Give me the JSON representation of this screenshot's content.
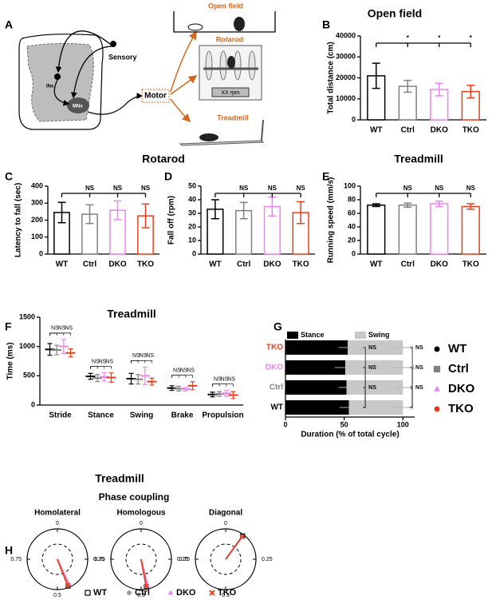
{
  "panel_a": {
    "letter": "A",
    "sensory": "Sensory",
    "ins": "INs",
    "mns": "MNs",
    "motor": "Motor",
    "open_field": "Open field",
    "rotarod": "Rotarod",
    "rpm": "XX rpm",
    "treadmill": "Treadmill"
  },
  "group_titles": {
    "rotarod": "Rotarod"
  },
  "chart_data": [
    {
      "type": "bar",
      "panel": "B",
      "title": "Open field",
      "ylabel": "Total distance (cm)",
      "categories": [
        "WT",
        "Ctrl",
        "DKO",
        "TKO"
      ],
      "values": [
        21000,
        16000,
        14500,
        13500
      ],
      "errors": [
        6000,
        2800,
        3000,
        3000
      ],
      "colors": [
        "#000000",
        "#808080",
        "#ee82ee",
        "#e8401c"
      ],
      "ylim": [
        0,
        40000
      ],
      "yticks": [
        0,
        10000,
        20000,
        30000,
        40000
      ],
      "significance": [
        "*",
        "*",
        "*"
      ]
    },
    {
      "type": "bar",
      "panel": "C",
      "ylabel": "Latency to fall (sec)",
      "categories": [
        "WT",
        "Ctrl",
        "DKO",
        "TKO"
      ],
      "values": [
        245,
        235,
        258,
        225
      ],
      "errors": [
        60,
        55,
        55,
        70
      ],
      "colors": [
        "#000000",
        "#808080",
        "#ee82ee",
        "#e8401c"
      ],
      "ylim": [
        0,
        400
      ],
      "yticks": [
        0,
        100,
        200,
        300,
        400
      ],
      "significance": [
        "NS",
        "NS",
        "NS"
      ]
    },
    {
      "type": "bar",
      "panel": "D",
      "ylabel": "Fall off (rpm)",
      "categories": [
        "WT",
        "Ctrl",
        "DKO",
        "TKO"
      ],
      "values": [
        33,
        32,
        35,
        30.5
      ],
      "errors": [
        7,
        6,
        7,
        8
      ],
      "colors": [
        "#000000",
        "#808080",
        "#ee82ee",
        "#e8401c"
      ],
      "ylim": [
        0,
        50
      ],
      "yticks": [
        0,
        10,
        20,
        30,
        40,
        50
      ],
      "significance": [
        "NS",
        "NS",
        "NS"
      ]
    },
    {
      "type": "bar",
      "panel": "E",
      "title": "Treadmill",
      "ylabel": "Running speed (mm/s)",
      "categories": [
        "WT",
        "Ctrl",
        "DKO",
        "TKO"
      ],
      "values": [
        72,
        72,
        74,
        70
      ],
      "errors": [
        2,
        3,
        4,
        4
      ],
      "colors": [
        "#000000",
        "#808080",
        "#ee82ee",
        "#e8401c"
      ],
      "ylim": [
        0,
        100
      ],
      "yticks": [
        0,
        20,
        40,
        60,
        80,
        100
      ],
      "significance": [
        "NS",
        "NS",
        "NS"
      ]
    },
    {
      "type": "dot",
      "panel": "F",
      "title": "Treadmill",
      "ylabel": "Time (ms)",
      "categories": [
        "Stride",
        "Stance",
        "Swing",
        "Brake",
        "Propulsion"
      ],
      "series": [
        {
          "name": "WT",
          "color": "#000000",
          "marker": "circle",
          "values": [
            950,
            490,
            450,
            290,
            180
          ],
          "errors": [
            100,
            50,
            90,
            40,
            40
          ]
        },
        {
          "name": "Ctrl",
          "color": "#808080",
          "marker": "square",
          "values": [
            940,
            460,
            440,
            280,
            190
          ],
          "errors": [
            80,
            60,
            80,
            40,
            40
          ]
        },
        {
          "name": "DKO",
          "color": "#ee82ee",
          "marker": "triangle",
          "values": [
            1000,
            480,
            500,
            270,
            200
          ],
          "errors": [
            120,
            70,
            150,
            30,
            50
          ]
        },
        {
          "name": "TKO",
          "color": "#e8401c",
          "marker": "circle",
          "values": [
            890,
            470,
            400,
            330,
            170
          ],
          "errors": [
            70,
            80,
            60,
            70,
            60
          ]
        }
      ],
      "ylim": [
        0,
        1500
      ],
      "yticks": [
        0,
        500,
        1000,
        1500
      ],
      "significance": [
        [
          "NS",
          "NS",
          "NS"
        ],
        [
          "NS",
          "NS",
          "NS"
        ],
        [
          "NS",
          "NS",
          "NS"
        ],
        [
          "NS",
          "NS",
          "NS"
        ],
        [
          "NS",
          "NS",
          "NS"
        ]
      ]
    },
    {
      "type": "stacked_barh",
      "panel": "G",
      "xlabel": "Duration (% of total cycle)",
      "categories": [
        "TKO",
        "DKO",
        "Ctrl",
        "WT"
      ],
      "category_colors": [
        "#e8401c",
        "#ee82ee",
        "#808080",
        "#000000"
      ],
      "series": [
        {
          "name": "Stance",
          "color": "#000000",
          "values": [
            53,
            51,
            52,
            54
          ],
          "errors": [
            8,
            9,
            7,
            8
          ]
        },
        {
          "name": "Swing",
          "color": "#c8c8c8",
          "values": [
            47,
            49,
            48,
            46
          ],
          "errors": [
            8,
            9,
            7,
            8
          ]
        }
      ],
      "xlim": [
        0,
        110
      ],
      "xticks": [
        0,
        50,
        100
      ],
      "significance": {
        "stance": [
          "NS",
          "NS",
          "NS"
        ],
        "total": [
          "NS",
          "NS",
          "NS"
        ]
      }
    },
    {
      "type": "polar",
      "panel": "H",
      "title": "Treadmill",
      "subtitle": "Phase coupling",
      "ticks": [
        0,
        0.25,
        0.5,
        0.75
      ],
      "rlim": [
        0,
        1
      ],
      "rgrid": [
        0.5
      ],
      "series": [
        {
          "name": "WT",
          "color": "#000000",
          "marker": "open-square"
        },
        {
          "name": "Ctrl",
          "color": "#a0a0a0",
          "marker": "circle"
        },
        {
          "name": "DKO",
          "color": "#ee82ee",
          "marker": "triangle"
        },
        {
          "name": "TKO",
          "color": "#e8401c",
          "marker": "x"
        }
      ],
      "plots": [
        {
          "title": "Homolateral",
          "phases": [
            0.44,
            0.44,
            0.43,
            0.44
          ],
          "lengths": [
            0.95,
            0.93,
            0.9,
            0.92
          ]
        },
        {
          "title": "Homologous",
          "phases": [
            0.47,
            0.47,
            0.46,
            0.47
          ],
          "lengths": [
            0.92,
            0.9,
            0.88,
            0.9
          ]
        },
        {
          "title": "Diagonal",
          "phases": [
            0.1,
            0.1,
            0.1,
            0.1
          ],
          "lengths": [
            0.95,
            0.93,
            0.9,
            0.92
          ]
        }
      ]
    }
  ]
}
